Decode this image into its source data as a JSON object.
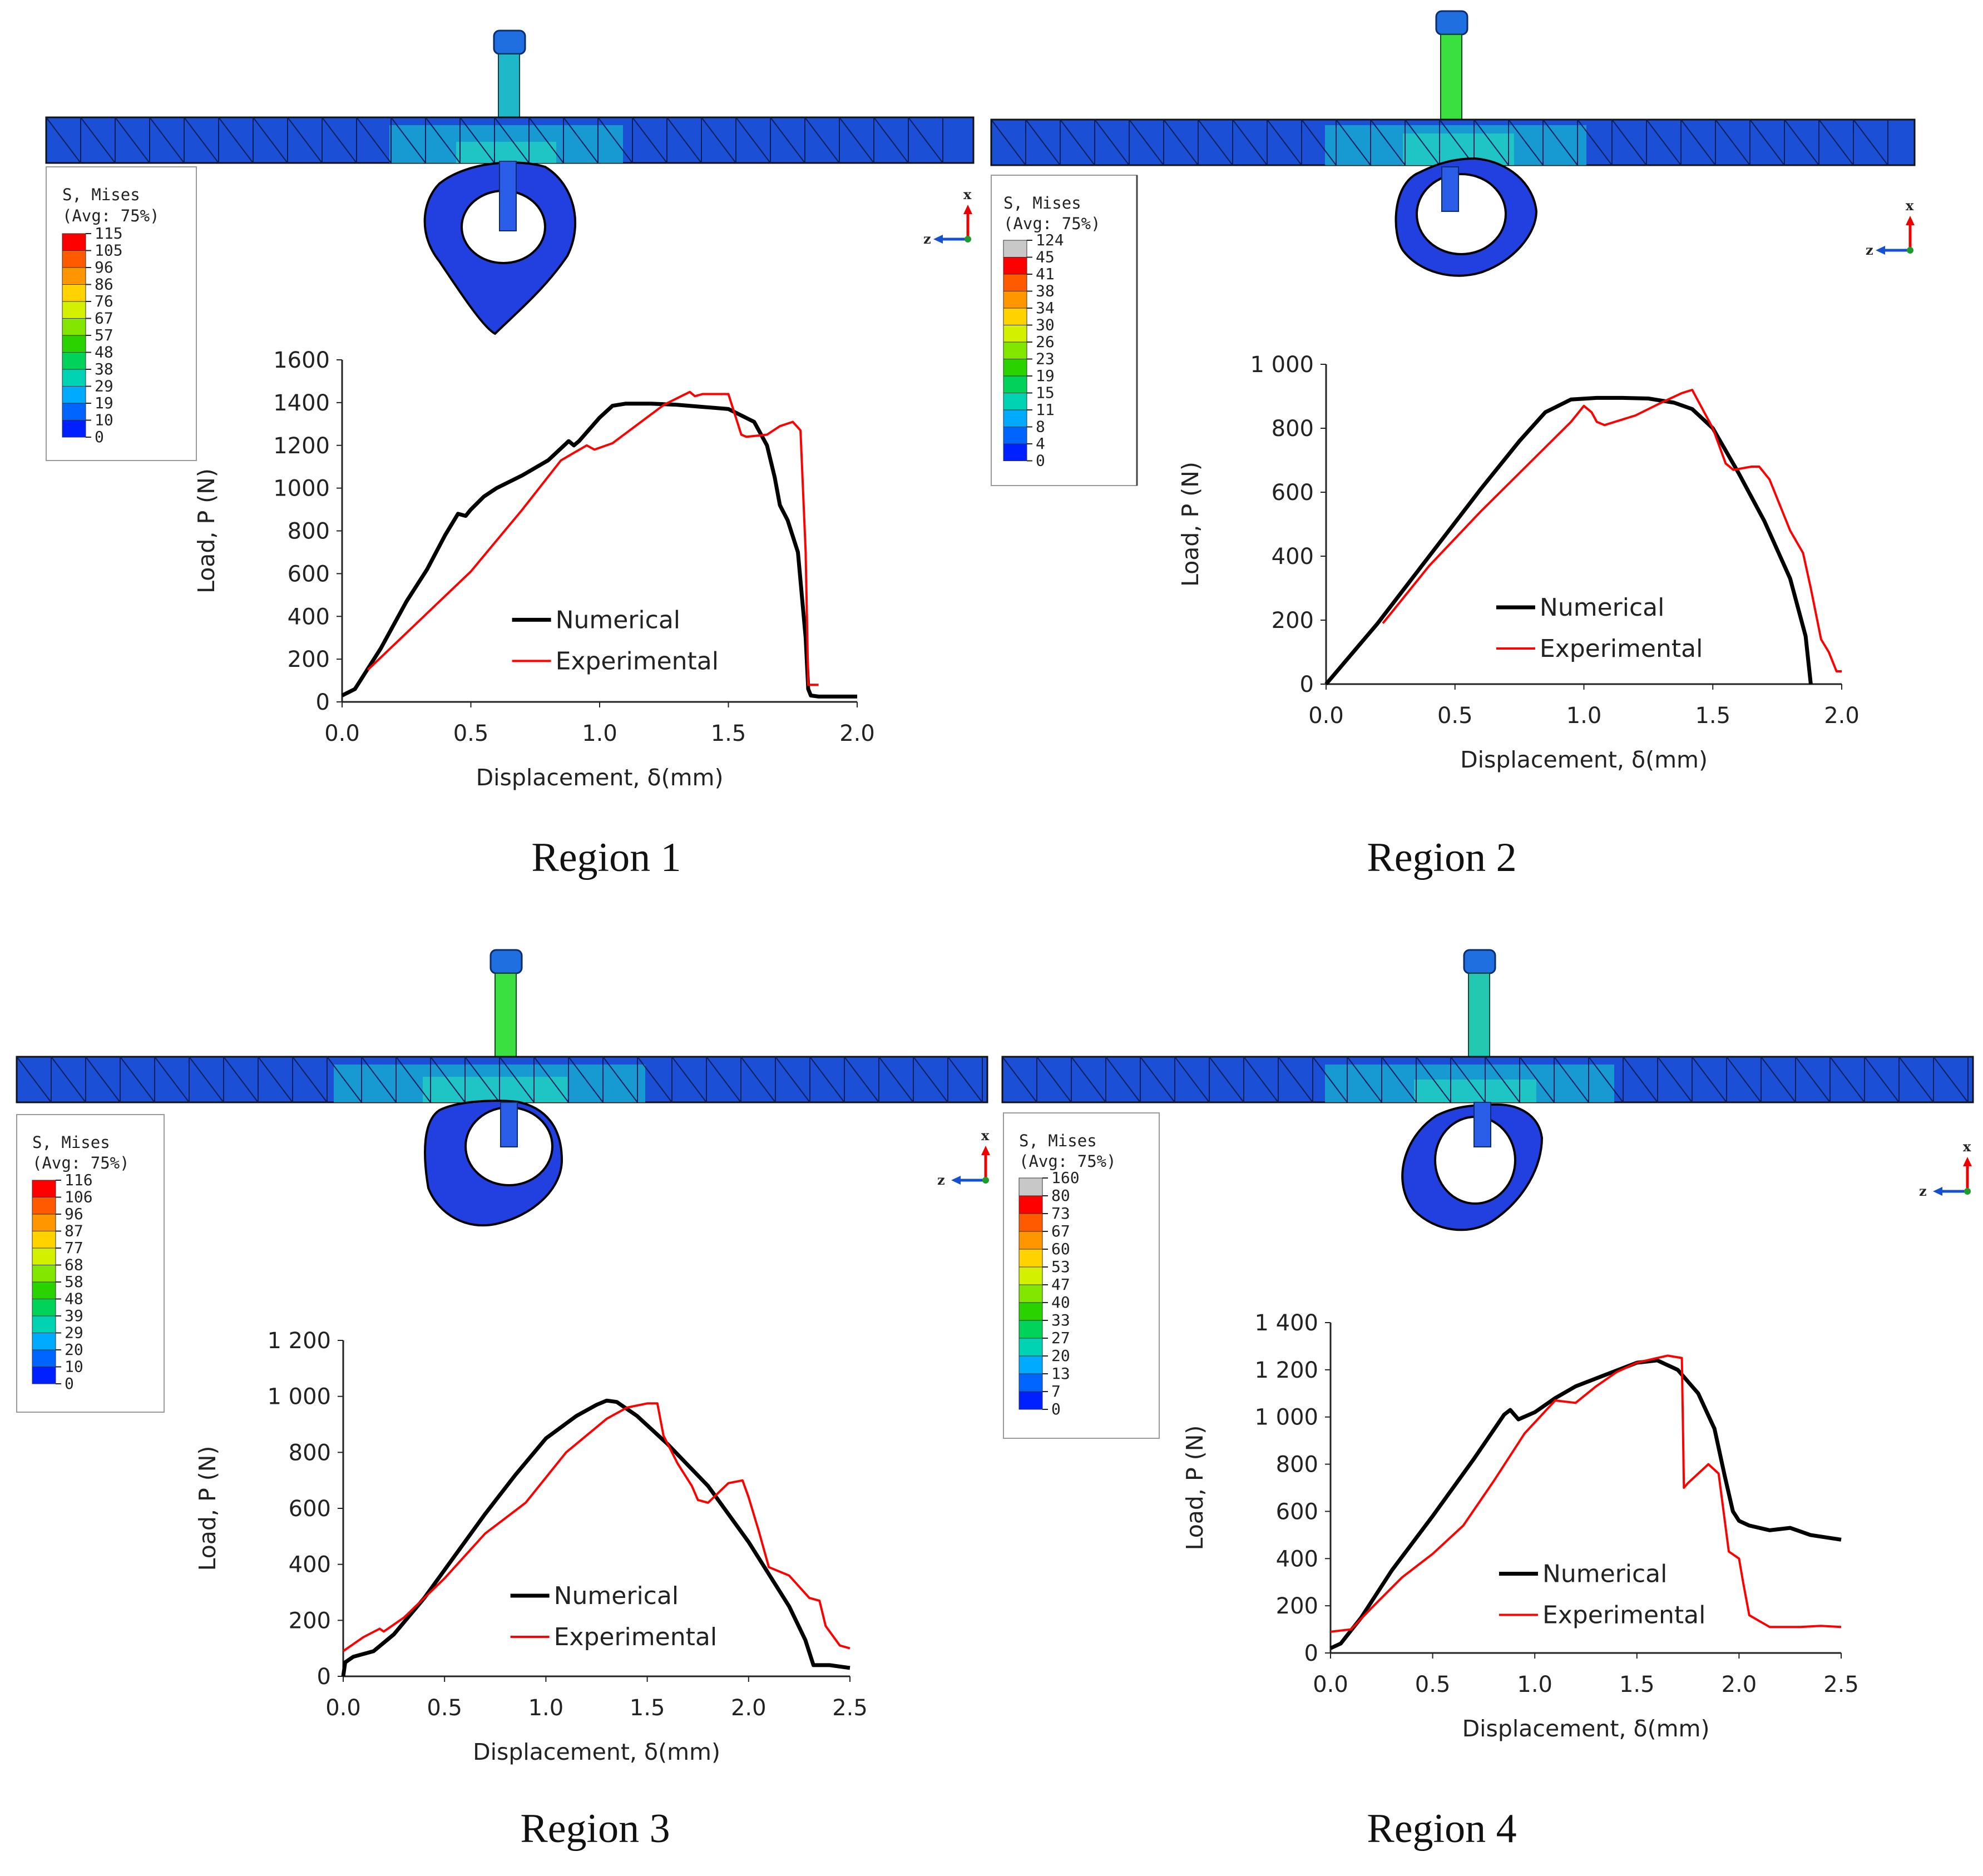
{
  "figure": {
    "panels": [
      {
        "region_label": "Region 1",
        "legend": {
          "title": "S, Mises",
          "subtitle": "(Avg: 75%)",
          "ticks": [
            "115",
            "105",
            "96",
            "86",
            "76",
            "67",
            "57",
            "48",
            "38",
            "29",
            "19",
            "10",
            "0"
          ],
          "colors": [
            "#ff0000",
            "#ff5a00",
            "#ff9600",
            "#ffd200",
            "#d2f000",
            "#82e600",
            "#2ad200",
            "#00d25a",
            "#00d2b4",
            "#00aaff",
            "#0064ff",
            "#0020ff"
          ]
        },
        "triad": {
          "x": "x",
          "z": "z"
        }
      },
      {
        "region_label": "Region 2",
        "legend": {
          "title": "S, Mises",
          "subtitle": "(Avg: 75%)",
          "ticks": [
            "124",
            "45",
            "41",
            "38",
            "34",
            "30",
            "26",
            "23",
            "19",
            "15",
            "11",
            "8",
            "4",
            "0"
          ],
          "colors": [
            "#c8c8c8",
            "#ff0000",
            "#ff5a00",
            "#ff9600",
            "#ffd200",
            "#d2f000",
            "#82e600",
            "#2ad200",
            "#00d25a",
            "#00d2b4",
            "#00aaff",
            "#0064ff",
            "#0020ff"
          ]
        },
        "triad": {
          "x": "x",
          "z": "z"
        }
      },
      {
        "region_label": "Region 3",
        "legend": {
          "title": "S, Mises",
          "subtitle": "(Avg: 75%)",
          "ticks": [
            "116",
            "106",
            "96",
            "87",
            "77",
            "68",
            "58",
            "48",
            "39",
            "29",
            "20",
            "10",
            "0"
          ],
          "colors": [
            "#ff0000",
            "#ff5a00",
            "#ff9600",
            "#ffd200",
            "#d2f000",
            "#82e600",
            "#2ad200",
            "#00d25a",
            "#00d2b4",
            "#00aaff",
            "#0064ff",
            "#0020ff"
          ]
        },
        "triad": {
          "x": "x",
          "z": "z"
        }
      },
      {
        "region_label": "Region 4",
        "legend": {
          "title": "S, Mises",
          "subtitle": "(Avg: 75%)",
          "ticks": [
            "160",
            "80",
            "73",
            "67",
            "60",
            "53",
            "47",
            "40",
            "33",
            "27",
            "20",
            "13",
            "7",
            "0"
          ],
          "colors": [
            "#c8c8c8",
            "#ff0000",
            "#ff5a00",
            "#ff9600",
            "#ffd200",
            "#d2f000",
            "#82e600",
            "#2ad200",
            "#00d25a",
            "#00d2b4",
            "#00aaff",
            "#0064ff",
            "#0020ff"
          ]
        },
        "triad": {
          "x": "x",
          "z": "z"
        }
      }
    ]
  },
  "chart_data": [
    {
      "type": "line",
      "panel": "Region 1",
      "xlabel": "Displacement, δ(mm)",
      "ylabel": "Load, P (N)",
      "xlim": [
        0,
        2.0
      ],
      "ylim": [
        0,
        1600
      ],
      "xticks": [
        0,
        0.5,
        1.0,
        1.5,
        2.0
      ],
      "xtick_labels": [
        "0.0",
        "0.5",
        "1.0",
        "1.5",
        "2.0"
      ],
      "yticks": [
        0,
        200,
        400,
        600,
        800,
        1000,
        1200,
        1400,
        1600
      ],
      "ytick_labels": [
        "0",
        "200",
        "400",
        "600",
        "800",
        "1000",
        "1200",
        "1400",
        "1600"
      ],
      "legend_position": "lower-center",
      "series": [
        {
          "name": "Numerical",
          "color": "#000000",
          "x": [
            0,
            0.05,
            0.15,
            0.25,
            0.33,
            0.4,
            0.45,
            0.48,
            0.5,
            0.55,
            0.6,
            0.7,
            0.8,
            0.88,
            0.9,
            0.92,
            1.0,
            1.05,
            1.1,
            1.2,
            1.3,
            1.4,
            1.5,
            1.6,
            1.65,
            1.68,
            1.7,
            1.73,
            1.77,
            1.8,
            1.81,
            1.82,
            1.85,
            2.0
          ],
          "y": [
            30,
            60,
            250,
            470,
            620,
            780,
            880,
            870,
            900,
            960,
            1000,
            1060,
            1130,
            1220,
            1200,
            1220,
            1330,
            1385,
            1395,
            1395,
            1390,
            1380,
            1370,
            1310,
            1200,
            1050,
            920,
            850,
            700,
            300,
            60,
            30,
            25,
            25
          ]
        },
        {
          "name": "Experimental",
          "color": "#ff0000",
          "x": [
            0.1,
            0.3,
            0.5,
            0.7,
            0.85,
            0.95,
            0.98,
            1.05,
            1.15,
            1.25,
            1.35,
            1.37,
            1.4,
            1.45,
            1.5,
            1.55,
            1.57,
            1.65,
            1.7,
            1.75,
            1.78,
            1.8,
            1.81,
            1.82,
            1.85
          ],
          "y": [
            150,
            380,
            610,
            900,
            1130,
            1200,
            1180,
            1210,
            1300,
            1390,
            1450,
            1430,
            1440,
            1440,
            1440,
            1250,
            1240,
            1250,
            1290,
            1310,
            1270,
            700,
            80,
            80,
            80
          ]
        }
      ]
    },
    {
      "type": "line",
      "panel": "Region 2",
      "xlabel": "Displacement, δ(mm)",
      "ylabel": "Load, P (N)",
      "xlim": [
        0,
        2.0
      ],
      "ylim": [
        0,
        1000
      ],
      "xticks": [
        0,
        0.5,
        1.0,
        1.5,
        2.0
      ],
      "xtick_labels": [
        "0.0",
        "0.5",
        "1.0",
        "1.5",
        "2.0"
      ],
      "yticks": [
        0,
        200,
        400,
        600,
        800,
        1000
      ],
      "ytick_labels": [
        "0",
        "200",
        "400",
        "600",
        "800",
        "1 000"
      ],
      "legend_position": "lower-center",
      "series": [
        {
          "name": "Numerical",
          "color": "#000000",
          "x": [
            0,
            0.2,
            0.4,
            0.6,
            0.75,
            0.85,
            0.95,
            1.05,
            1.15,
            1.25,
            1.35,
            1.42,
            1.5,
            1.6,
            1.7,
            1.8,
            1.86,
            1.88
          ],
          "y": [
            0,
            190,
            400,
            610,
            760,
            850,
            890,
            895,
            895,
            893,
            880,
            860,
            800,
            660,
            510,
            330,
            150,
            0
          ]
        },
        {
          "name": "Experimental",
          "color": "#ff0000",
          "x": [
            0.22,
            0.4,
            0.6,
            0.8,
            0.95,
            1.0,
            1.03,
            1.05,
            1.08,
            1.1,
            1.2,
            1.3,
            1.38,
            1.42,
            1.5,
            1.55,
            1.58,
            1.65,
            1.68,
            1.72,
            1.8,
            1.85,
            1.88,
            1.92,
            1.95,
            1.98,
            2.0
          ],
          "y": [
            190,
            370,
            540,
            700,
            820,
            870,
            850,
            820,
            810,
            815,
            840,
            880,
            910,
            920,
            800,
            690,
            670,
            680,
            680,
            640,
            480,
            410,
            300,
            140,
            100,
            40,
            40
          ]
        }
      ]
    },
    {
      "type": "line",
      "panel": "Region 3",
      "xlabel": "Displacement, δ(mm)",
      "ylabel": "Load, P (N)",
      "xlim": [
        0,
        2.5
      ],
      "ylim": [
        0,
        1200
      ],
      "xticks": [
        0,
        0.5,
        1.0,
        1.5,
        2.0,
        2.5
      ],
      "xtick_labels": [
        "0.0",
        "0.5",
        "1.0",
        "1.5",
        "2.0",
        "2.5"
      ],
      "yticks": [
        0,
        200,
        400,
        600,
        800,
        1000,
        1200
      ],
      "ytick_labels": [
        "0",
        "200",
        "400",
        "600",
        "800",
        "1 000",
        "1 200"
      ],
      "legend_position": "lower-center",
      "series": [
        {
          "name": "Numerical",
          "color": "#000000",
          "x": [
            0,
            0.01,
            0.05,
            0.15,
            0.25,
            0.4,
            0.55,
            0.7,
            0.85,
            1.0,
            1.15,
            1.25,
            1.3,
            1.35,
            1.45,
            1.6,
            1.8,
            2.0,
            2.2,
            2.28,
            2.32,
            2.4,
            2.5
          ],
          "y": [
            0,
            50,
            70,
            90,
            150,
            280,
            430,
            580,
            720,
            850,
            930,
            970,
            985,
            980,
            930,
            830,
            680,
            480,
            250,
            130,
            40,
            40,
            30
          ]
        },
        {
          "name": "Experimental",
          "color": "#ff0000",
          "x": [
            0,
            0.1,
            0.18,
            0.2,
            0.3,
            0.5,
            0.7,
            0.9,
            1.1,
            1.3,
            1.4,
            1.5,
            1.55,
            1.58,
            1.65,
            1.72,
            1.75,
            1.8,
            1.9,
            1.97,
            2.0,
            2.05,
            2.1,
            2.2,
            2.3,
            2.35,
            2.38,
            2.45,
            2.5
          ],
          "y": [
            90,
            140,
            170,
            160,
            210,
            350,
            510,
            620,
            800,
            920,
            960,
            975,
            975,
            860,
            760,
            680,
            630,
            620,
            690,
            700,
            640,
            520,
            390,
            360,
            280,
            270,
            180,
            110,
            100
          ]
        }
      ]
    },
    {
      "type": "line",
      "panel": "Region 4",
      "xlabel": "Displacement, δ(mm)",
      "ylabel": "Load, P (N)",
      "xlim": [
        0,
        2.5
      ],
      "ylim": [
        0,
        1400
      ],
      "xticks": [
        0,
        0.5,
        1.0,
        1.5,
        2.0,
        2.5
      ],
      "xtick_labels": [
        "0.0",
        "0.5",
        "1.0",
        "1.5",
        "2.0",
        "2.5"
      ],
      "yticks": [
        0,
        200,
        400,
        600,
        800,
        1000,
        1200,
        1400
      ],
      "ytick_labels": [
        "0",
        "200",
        "400",
        "600",
        "800",
        "1 000",
        "1 200",
        "1 400"
      ],
      "legend_position": "lower-center",
      "series": [
        {
          "name": "Numerical",
          "color": "#000000",
          "x": [
            0,
            0.05,
            0.15,
            0.3,
            0.5,
            0.7,
            0.85,
            0.88,
            0.92,
            1.0,
            1.1,
            1.2,
            1.35,
            1.5,
            1.6,
            1.7,
            1.8,
            1.88,
            1.93,
            1.97,
            2.0,
            2.05,
            2.15,
            2.25,
            2.35,
            2.5
          ],
          "y": [
            20,
            40,
            150,
            350,
            580,
            820,
            1010,
            1030,
            990,
            1020,
            1080,
            1130,
            1180,
            1230,
            1240,
            1200,
            1100,
            950,
            750,
            600,
            560,
            540,
            520,
            530,
            500,
            480
          ]
        },
        {
          "name": "Experimental",
          "color": "#ff0000",
          "x": [
            0,
            0.1,
            0.2,
            0.35,
            0.5,
            0.65,
            0.8,
            0.95,
            1.1,
            1.2,
            1.3,
            1.4,
            1.5,
            1.6,
            1.65,
            1.72,
            1.73,
            1.75,
            1.8,
            1.85,
            1.9,
            1.95,
            2.0,
            2.02,
            2.05,
            2.15,
            2.3,
            2.4,
            2.5
          ],
          "y": [
            90,
            100,
            190,
            320,
            420,
            540,
            730,
            930,
            1070,
            1060,
            1130,
            1190,
            1230,
            1250,
            1260,
            1250,
            700,
            720,
            760,
            800,
            760,
            430,
            400,
            300,
            160,
            110,
            110,
            115,
            110
          ]
        }
      ]
    }
  ]
}
